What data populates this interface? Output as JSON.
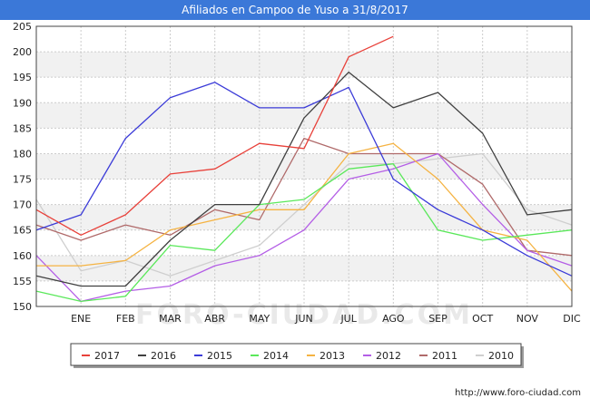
{
  "chart_data": {
    "type": "line",
    "title": "Afiliados en Campoo de Yuso a 31/8/2017",
    "categories": [
      "",
      "ENE",
      "FEB",
      "MAR",
      "ABR",
      "MAY",
      "JUN",
      "JUL",
      "AGO",
      "SEP",
      "OCT",
      "NOV",
      "DIC"
    ],
    "ylim": [
      150,
      205
    ],
    "yticks": [
      150,
      155,
      160,
      165,
      170,
      175,
      180,
      185,
      190,
      195,
      200,
      205
    ],
    "grid": true,
    "legend_position": "bottom",
    "watermark": "FORO-CIUDAD.COM",
    "series": [
      {
        "name": "2017",
        "color": "#e8413a",
        "values": [
          169,
          164,
          168,
          176,
          177,
          182,
          181,
          199,
          203,
          null,
          null,
          null,
          null
        ]
      },
      {
        "name": "2016",
        "color": "#404040",
        "values": [
          156,
          154,
          154,
          163,
          170,
          170,
          187,
          196,
          189,
          192,
          184,
          168,
          169
        ]
      },
      {
        "name": "2015",
        "color": "#3b3bd8",
        "values": [
          165,
          168,
          183,
          191,
          194,
          189,
          189,
          193,
          175,
          169,
          165,
          160,
          156
        ]
      },
      {
        "name": "2014",
        "color": "#5ae85a",
        "values": [
          153,
          151,
          152,
          162,
          161,
          170,
          171,
          177,
          178,
          165,
          163,
          164,
          165
        ]
      },
      {
        "name": "2013",
        "color": "#f5b342",
        "values": [
          158,
          158,
          159,
          165,
          167,
          169,
          169,
          180,
          182,
          175,
          165,
          163,
          153
        ]
      },
      {
        "name": "2012",
        "color": "#b45ee6",
        "values": [
          160,
          151,
          153,
          154,
          158,
          160,
          165,
          175,
          177,
          180,
          170,
          161,
          158
        ]
      },
      {
        "name": "2011",
        "color": "#b06a6a",
        "values": [
          166,
          163,
          166,
          164,
          169,
          167,
          183,
          180,
          180,
          180,
          174,
          161,
          160
        ]
      },
      {
        "name": "2010",
        "color": "#cfcfcf",
        "values": [
          171,
          157,
          159,
          156,
          159,
          162,
          170,
          178,
          178,
          179,
          180,
          169,
          166
        ]
      }
    ]
  },
  "footer": {
    "url": "http://www.foro-ciudad.com"
  }
}
